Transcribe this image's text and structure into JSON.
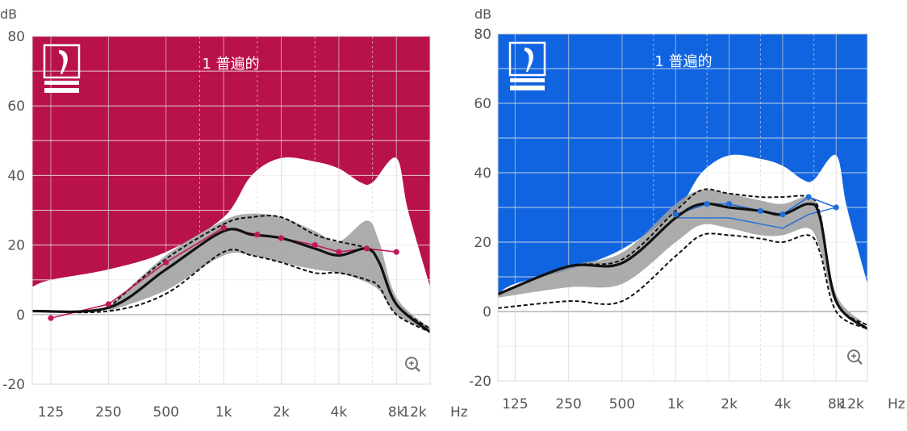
{
  "chart_data": [
    {
      "type": "line",
      "title": "1 普遍的",
      "ylabel": "dB",
      "xunit": "Hz",
      "ylim": [
        -20,
        80
      ],
      "yticks": [
        80,
        60,
        40,
        20,
        0,
        -20
      ],
      "x_ticks": [
        {
          "label": "125",
          "hz": 125
        },
        {
          "label": "250",
          "hz": 250
        },
        {
          "label": "500",
          "hz": 500
        },
        {
          "label": "1k",
          "hz": 1000
        },
        {
          "label": "2k",
          "hz": 2000
        },
        {
          "label": "4k",
          "hz": 4000
        },
        {
          "label": "8k",
          "hz": 8000
        },
        {
          "label": "12k",
          "hz": 12000
        }
      ],
      "xlim_hz": [
        100,
        12000
      ],
      "colors": {
        "background": "#b9124a",
        "accent": "#c2185b"
      },
      "series": [
        {
          "role": "upper-boundary",
          "points": [
            [
              100,
              8
            ],
            [
              125,
              10
            ],
            [
              250,
              13
            ],
            [
              500,
              18
            ],
            [
              1000,
              28
            ],
            [
              1400,
              40
            ],
            [
              2000,
              45
            ],
            [
              3000,
              44
            ],
            [
              4000,
              42
            ],
            [
              5200,
              38
            ],
            [
              6000,
              38
            ],
            [
              8000,
              45
            ],
            [
              9200,
              30
            ],
            [
              12000,
              8
            ]
          ]
        },
        {
          "role": "shaded-band-upper",
          "points": [
            [
              250,
              2
            ],
            [
              500,
              17
            ],
            [
              1000,
              27
            ],
            [
              1400,
              29
            ],
            [
              2000,
              28
            ],
            [
              3000,
              24
            ],
            [
              4000,
              21
            ],
            [
              5600,
              27
            ],
            [
              6500,
              21
            ],
            [
              8000,
              5
            ],
            [
              12000,
              -4
            ]
          ]
        },
        {
          "role": "shaded-band-lower",
          "points": [
            [
              250,
              1
            ],
            [
              500,
              7
            ],
            [
              1000,
              17
            ],
            [
              1400,
              17
            ],
            [
              2000,
              15
            ],
            [
              3000,
              13
            ],
            [
              4000,
              12
            ],
            [
              5200,
              10
            ],
            [
              6500,
              7
            ],
            [
              8000,
              0
            ],
            [
              12000,
              -5
            ]
          ]
        },
        {
          "role": "dashed-upper",
          "points": [
            [
              250,
              2
            ],
            [
              500,
              16
            ],
            [
              1000,
              26
            ],
            [
              1400,
              28
            ],
            [
              2000,
              28
            ],
            [
              3000,
              23
            ],
            [
              4000,
              21
            ],
            [
              5600,
              19
            ],
            [
              6500,
              15
            ],
            [
              8000,
              3
            ],
            [
              12000,
              -4
            ]
          ]
        },
        {
          "role": "dashed-lower",
          "points": [
            [
              100,
              1
            ],
            [
              250,
              1
            ],
            [
              500,
              6
            ],
            [
              1000,
              18
            ],
            [
              1400,
              17
            ],
            [
              2000,
              15
            ],
            [
              3000,
              12
            ],
            [
              4000,
              12
            ],
            [
              5600,
              10
            ],
            [
              6500,
              8
            ],
            [
              8000,
              0
            ],
            [
              12000,
              -5
            ]
          ]
        },
        {
          "role": "target",
          "points": [
            [
              100,
              1
            ],
            [
              250,
              2
            ],
            [
              500,
              13
            ],
            [
              1000,
              24
            ],
            [
              1400,
              23
            ],
            [
              2000,
              22
            ],
            [
              3000,
              19
            ],
            [
              4000,
              17
            ],
            [
              5600,
              19
            ],
            [
              6500,
              15
            ],
            [
              8000,
              3
            ],
            [
              12000,
              -5
            ]
          ]
        },
        {
          "role": "measured",
          "points": [
            [
              125,
              -1
            ],
            [
              250,
              3
            ],
            [
              500,
              15
            ],
            [
              1000,
              25
            ],
            [
              1500,
              23
            ],
            [
              2000,
              22
            ],
            [
              3000,
              20
            ],
            [
              4000,
              18
            ],
            [
              5600,
              19
            ],
            [
              8000,
              18
            ]
          ]
        }
      ]
    },
    {
      "type": "line",
      "title": "1 普遍的",
      "ylabel": "dB",
      "xunit": "Hz",
      "ylim": [
        -20,
        80
      ],
      "yticks": [
        80,
        60,
        40,
        20,
        0,
        -20
      ],
      "x_ticks": [
        {
          "label": "125",
          "hz": 125
        },
        {
          "label": "250",
          "hz": 250
        },
        {
          "label": "500",
          "hz": 500
        },
        {
          "label": "1k",
          "hz": 1000
        },
        {
          "label": "2k",
          "hz": 2000
        },
        {
          "label": "4k",
          "hz": 4000
        },
        {
          "label": "8k",
          "hz": 8000
        },
        {
          "label": "12k",
          "hz": 12000
        }
      ],
      "xlim_hz": [
        100,
        12000
      ],
      "colors": {
        "background": "#1164e0",
        "accent": "#1e6fd9"
      },
      "series": [
        {
          "role": "upper-boundary",
          "points": [
            [
              100,
              5
            ],
            [
              125,
              8
            ],
            [
              250,
              12
            ],
            [
              500,
              18
            ],
            [
              1000,
              29
            ],
            [
              1400,
              40
            ],
            [
              2000,
              45
            ],
            [
              3000,
              44
            ],
            [
              4000,
              42
            ],
            [
              5200,
              38
            ],
            [
              6000,
              38
            ],
            [
              8000,
              45
            ],
            [
              9200,
              30
            ],
            [
              12000,
              8
            ]
          ]
        },
        {
          "role": "shaded-band-upper",
          "points": [
            [
              100,
              5
            ],
            [
              250,
              13
            ],
            [
              500,
              17
            ],
            [
              1000,
              31
            ],
            [
              1400,
              35
            ],
            [
              2000,
              34
            ],
            [
              3000,
              32
            ],
            [
              4000,
              31
            ],
            [
              5600,
              33
            ],
            [
              6500,
              28
            ],
            [
              8000,
              5
            ],
            [
              12000,
              -4
            ]
          ]
        },
        {
          "role": "shaded-band-lower",
          "points": [
            [
              100,
              4
            ],
            [
              250,
              7
            ],
            [
              500,
              8
            ],
            [
              1000,
              20
            ],
            [
              1400,
              25
            ],
            [
              2000,
              24
            ],
            [
              3000,
              22
            ],
            [
              4000,
              22
            ],
            [
              5600,
              24
            ],
            [
              6500,
              18
            ],
            [
              8000,
              2
            ],
            [
              12000,
              -4
            ]
          ]
        },
        {
          "role": "dashed-upper",
          "points": [
            [
              100,
              5
            ],
            [
              250,
              13
            ],
            [
              500,
              15
            ],
            [
              1000,
              29
            ],
            [
              1400,
              35
            ],
            [
              2000,
              34
            ],
            [
              3000,
              33
            ],
            [
              4000,
              33
            ],
            [
              5600,
              33
            ],
            [
              6500,
              28
            ],
            [
              8000,
              3
            ],
            [
              12000,
              -4
            ]
          ]
        },
        {
          "role": "dashed-lower",
          "points": [
            [
              100,
              1
            ],
            [
              250,
              3
            ],
            [
              500,
              3
            ],
            [
              1000,
              16
            ],
            [
              1400,
              22
            ],
            [
              2000,
              22
            ],
            [
              3000,
              21
            ],
            [
              4000,
              20
            ],
            [
              5600,
              22
            ],
            [
              6500,
              17
            ],
            [
              8000,
              0
            ],
            [
              12000,
              -5
            ]
          ]
        },
        {
          "role": "target",
          "points": [
            [
              100,
              5
            ],
            [
              250,
              13
            ],
            [
              500,
              14
            ],
            [
              1000,
              27
            ],
            [
              1400,
              31
            ],
            [
              2000,
              30
            ],
            [
              3000,
              29
            ],
            [
              4000,
              28
            ],
            [
              5600,
              31
            ],
            [
              6500,
              27
            ],
            [
              8000,
              3
            ],
            [
              12000,
              -5
            ]
          ]
        },
        {
          "role": "measured",
          "points": [
            [
              1000,
              28
            ],
            [
              1500,
              31
            ],
            [
              2000,
              31
            ],
            [
              3000,
              29
            ],
            [
              4000,
              28
            ],
            [
              5600,
              33
            ],
            [
              8000,
              30
            ]
          ]
        },
        {
          "role": "measured-alt",
          "points": [
            [
              1000,
              27
            ],
            [
              2000,
              27
            ],
            [
              4000,
              24
            ],
            [
              5600,
              28
            ],
            [
              8000,
              30
            ]
          ]
        }
      ]
    }
  ]
}
